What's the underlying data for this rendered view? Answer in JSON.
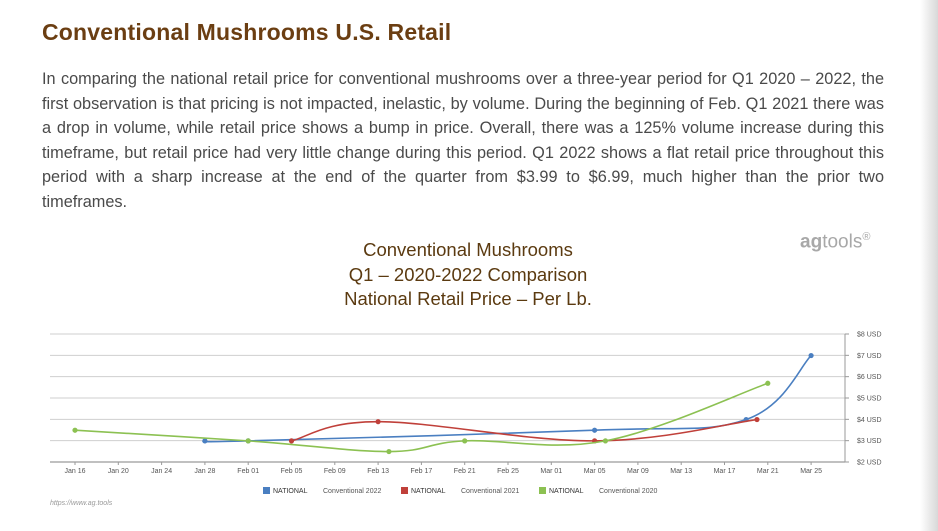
{
  "heading": "Conventional Mushrooms U.S. Retail",
  "paragraph": "In comparing the national retail price for conventional mushrooms over a three-year period for Q1 2020 – 2022, the first observation is that pricing is not impacted, inelastic, by volume. During the beginning of Feb. Q1 2021 there was a drop in volume, while retail price shows a bump in price. Overall, there was a 125% volume increase during this timeframe, but retail price had very little change during this period.  Q1 2022 shows a flat retail price throughout this period with a sharp increase at the end of the quarter from $3.99 to $6.99, much higher than the prior two timeframes.",
  "brand": {
    "bold": "ag",
    "rest": "tools",
    "mark": "®"
  },
  "footer_url": "https://www.ag.tools",
  "chart_data": {
    "type": "line",
    "title": [
      "Conventional Mushrooms",
      "Q1 – 2020-2022 Comparison",
      "National Retail Price – Per Lb."
    ],
    "x_tick_labels": [
      "Jan 16",
      "Jan 20",
      "Jan 24",
      "Jan 28",
      "Feb 01",
      "Feb 05",
      "Feb 09",
      "Feb 13",
      "Feb 17",
      "Feb 21",
      "Feb 25",
      "Mar 01",
      "Mar 05",
      "Mar 09",
      "Mar 13",
      "Mar 17",
      "Mar 21",
      "Mar 25"
    ],
    "y_tick_labels": [
      "$2 USD",
      "$3 USD",
      "$4 USD",
      "$5 USD",
      "$6 USD",
      "$7 USD",
      "$8 USD"
    ],
    "ylim": [
      2,
      8
    ],
    "y_axis_side": "right",
    "grid": true,
    "legend_position": "bottom",
    "series": [
      {
        "name": "NATIONAL Conventional 2022",
        "legend_prefix": "NATIONAL",
        "legend_suffix": "Conventional 2022",
        "color": "#4a7fc1",
        "points": [
          {
            "x": "Jan 28",
            "y": 2.99
          },
          {
            "x": "Feb 01",
            "y": 2.99
          },
          {
            "x": "Mar 05",
            "y": 3.49
          },
          {
            "x": "Mar 19",
            "y": 3.99
          },
          {
            "x": "Mar 25",
            "y": 6.99
          }
        ]
      },
      {
        "name": "NATIONAL Conventional 2021",
        "legend_prefix": "NATIONAL",
        "legend_suffix": "Conventional 2021",
        "color": "#c0403a",
        "points": [
          {
            "x": "Feb 05",
            "y": 2.99
          },
          {
            "x": "Feb 13",
            "y": 3.89
          },
          {
            "x": "Mar 05",
            "y": 2.99
          },
          {
            "x": "Mar 20",
            "y": 3.99
          }
        ]
      },
      {
        "name": "NATIONAL Conventional 2020",
        "legend_prefix": "NATIONAL",
        "legend_suffix": "Conventional 2020",
        "color": "#8cc152",
        "points": [
          {
            "x": "Jan 16",
            "y": 3.49
          },
          {
            "x": "Feb 01",
            "y": 2.99
          },
          {
            "x": "Feb 14",
            "y": 2.49
          },
          {
            "x": "Feb 21",
            "y": 2.99
          },
          {
            "x": "Mar 06",
            "y": 2.99
          },
          {
            "x": "Mar 21",
            "y": 5.69
          }
        ]
      }
    ]
  }
}
